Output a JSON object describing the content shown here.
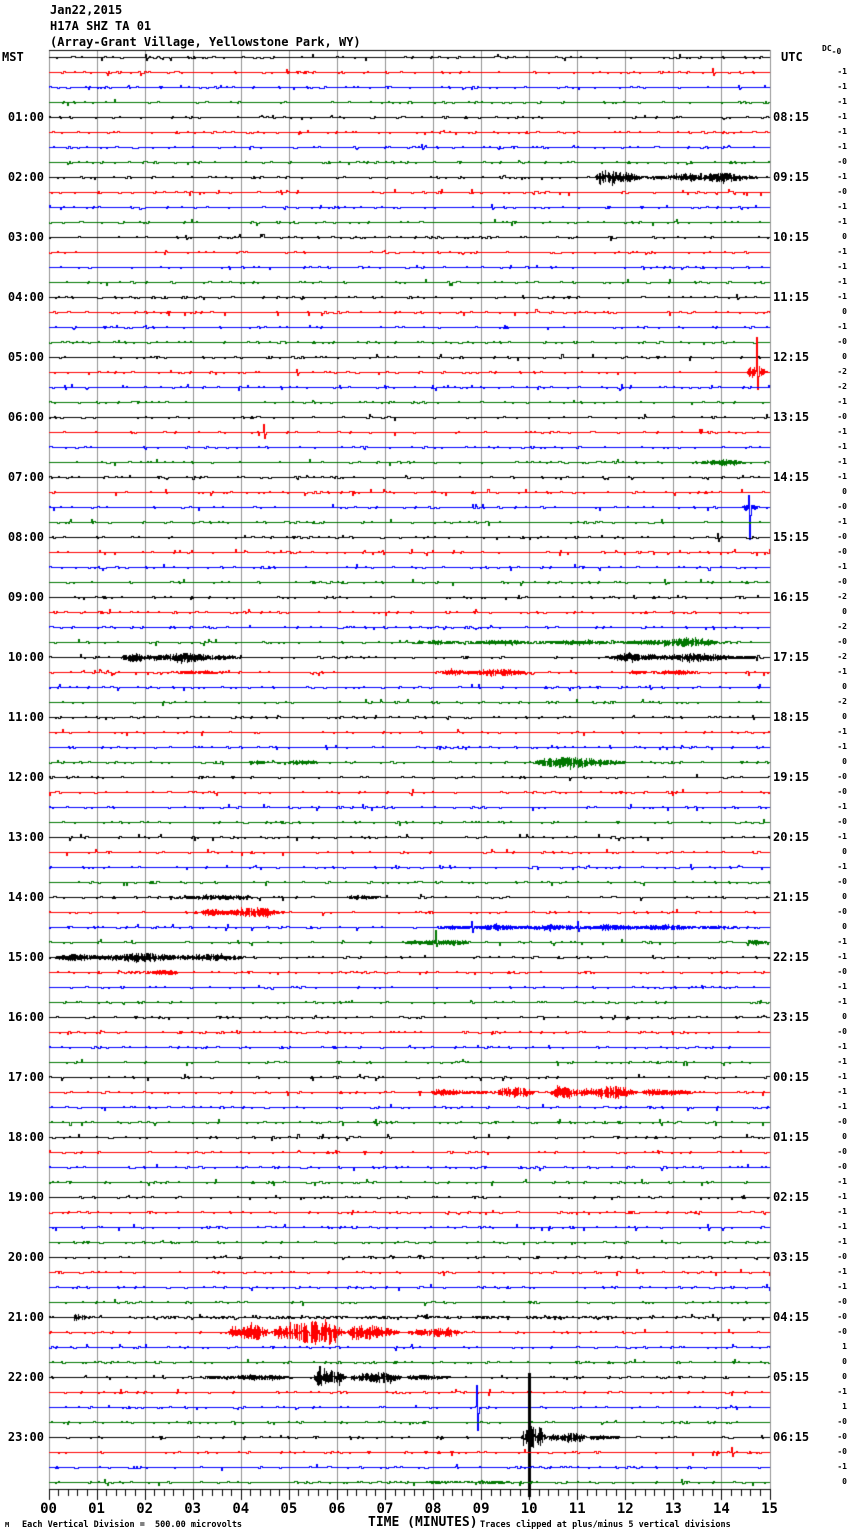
{
  "header": {
    "date": "Jan22,2015",
    "station": "H17A SHZ TA 01",
    "location": "(Array-Grant Village, Yellowstone Park, WY)"
  },
  "axes": {
    "left_title": "MST",
    "right_title": "UTC",
    "x_title": "TIME (MINUTES)",
    "dc_header": "DC",
    "x_ticks": [
      "00",
      "01",
      "02",
      "03",
      "04",
      "05",
      "06",
      "07",
      "08",
      "09",
      "10",
      "11",
      "12",
      "13",
      "14",
      "15"
    ]
  },
  "footer": {
    "logo_mark": "M",
    "scale_note": "Each Vertical Division =  500.00 microvolts",
    "clip_note": "Traces clipped at plus/minus 5 vertical divisions"
  },
  "chart_data": {
    "type": "line",
    "subtype": "helicorder-seismogram",
    "minutes_per_line": 15,
    "trace_colors": [
      "#000000",
      "#ff0000",
      "#0000ff",
      "#007700"
    ],
    "grid_color": "#909090",
    "rows": 96,
    "hours_left": [
      "01:00",
      "02:00",
      "03:00",
      "04:00",
      "05:00",
      "06:00",
      "07:00",
      "08:00",
      "09:00",
      "10:00",
      "11:00",
      "12:00",
      "13:00",
      "14:00",
      "15:00",
      "16:00",
      "17:00",
      "18:00",
      "19:00",
      "20:00",
      "21:00",
      "22:00",
      "23:00"
    ],
    "utc_right": [
      "08:15",
      "09:15",
      "10:15",
      "11:15",
      "12:15",
      "13:15",
      "14:15",
      "15:15",
      "16:15",
      "17:15",
      "18:15",
      "19:15",
      "20:15",
      "21:15",
      "22:15",
      "23:15",
      "00:15",
      "01:15",
      "02:15",
      "03:15",
      "04:15",
      "05:15",
      "06:15"
    ],
    "dc_values": [
      "-0",
      "-1",
      "-1",
      "-1",
      "-1",
      "-1",
      "-1",
      "-0",
      "-1",
      "-0",
      "-1",
      "-1",
      "0",
      "-1",
      "-1",
      "-1",
      "-1",
      "0",
      "-1",
      "-0",
      "0",
      "-2",
      "-2",
      "-1",
      "-0",
      "-1",
      "-1",
      "-1",
      "-1",
      "0",
      "-0",
      "-1",
      "-0",
      "-0",
      "-1",
      "-0",
      "-2",
      "0",
      "-2",
      "-0",
      "-2",
      "-1",
      "0",
      "-2",
      "0",
      "-1",
      "-1",
      "0",
      "-0",
      "-0",
      "-1",
      "-0",
      "-1",
      "0",
      "-1",
      "-0",
      "0",
      "-0",
      "0",
      "-1",
      "-1",
      "-0",
      "-1",
      "-1",
      "0",
      "-0",
      "-1",
      "-1",
      "-1",
      "-1",
      "-1",
      "-0",
      "0",
      "-0",
      "-0",
      "-1",
      "-1",
      "-1",
      "-1",
      "-1",
      "-0",
      "-1",
      "-1",
      "-0",
      "-0",
      "-0",
      "1",
      "0",
      "0",
      "-1",
      "1",
      "-0",
      "-0",
      "-0",
      "-1",
      "0"
    ],
    "events": {
      "0": [
        {
          "type": "spike",
          "t": 2.0,
          "up": 3,
          "down": 3
        },
        {
          "type": "burst",
          "t0": 1.8,
          "t1": 2.5,
          "amp": 1.2
        }
      ],
      "1": [
        {
          "type": "spike",
          "t": 13.8,
          "up": 4,
          "down": 3
        }
      ],
      "2": [
        {
          "type": "spike",
          "t": 14.35,
          "up": 2,
          "down": 2
        }
      ],
      "6": [
        {
          "type": "spike",
          "t": 7.75,
          "up": 3,
          "down": 2
        }
      ],
      "8": [
        {
          "type": "burst",
          "t0": 11.35,
          "t1": 12.45,
          "amp": 7.5
        },
        {
          "type": "burst",
          "t0": 12.45,
          "t1": 15,
          "amp": 4.5
        },
        {
          "type": "burst",
          "t0": 12.95,
          "t1": 13.55,
          "amp": 6.5
        }
      ],
      "10": [
        {
          "type": "spike",
          "t": 9.2,
          "up": 3,
          "down": 2
        }
      ],
      "12": [
        {
          "type": "spike",
          "t": 2.85,
          "up": 2,
          "down": 2
        }
      ],
      "16": [
        {
          "type": "spike",
          "t": 14.3,
          "up": 3,
          "down": 2
        }
      ],
      "21": [
        {
          "type": "spike",
          "t": 5.15,
          "up": 3,
          "down": 3
        },
        {
          "type": "spike",
          "t": 14.71,
          "up": 35,
          "down": 17
        },
        {
          "type": "burst",
          "t0": 14.52,
          "t1": 14.95,
          "amp": 10
        }
      ],
      "25": [
        {
          "type": "spike",
          "t": 4.47,
          "up": 8,
          "down": 6
        }
      ],
      "27": [
        {
          "type": "burst",
          "t0": 13.5,
          "t1": 14.55,
          "amp": 3
        }
      ],
      "30": [
        {
          "type": "spike",
          "t": 14.56,
          "up": 12,
          "down": 32
        },
        {
          "type": "burst",
          "t0": 14.42,
          "t1": 14.78,
          "amp": 6
        }
      ],
      "32": [
        {
          "type": "spike",
          "t": 13.9,
          "up": 4,
          "down": 4
        }
      ],
      "35": [
        {
          "type": "spike",
          "t": 12.8,
          "up": 3,
          "down": 2
        }
      ],
      "39": [
        {
          "type": "burst",
          "t0": 7.1,
          "t1": 15,
          "amp": 2.2
        },
        {
          "type": "burst",
          "t0": 12.1,
          "t1": 14.2,
          "amp": 4.2
        }
      ],
      "40": [
        {
          "type": "burst",
          "t0": 1.4,
          "t1": 4.1,
          "amp": 4.6
        },
        {
          "type": "burst",
          "t0": 11.5,
          "t1": 15,
          "amp": 4
        }
      ],
      "41": [
        {
          "type": "burst",
          "t0": 2.1,
          "t1": 4.0,
          "amp": 1.6
        },
        {
          "type": "burst",
          "t0": 8.1,
          "t1": 10.3,
          "amp": 3.5
        },
        {
          "type": "burst",
          "t0": 12.0,
          "t1": 13.7,
          "amp": 2.2
        }
      ],
      "42": [
        {
          "type": "spike",
          "t": 12.5,
          "up": 2,
          "down": 2
        }
      ],
      "47": [
        {
          "type": "burst",
          "t0": 4.1,
          "t1": 5.9,
          "amp": 2
        },
        {
          "type": "burst",
          "t0": 10.0,
          "t1": 12.15,
          "amp": 5.5
        }
      ],
      "54": [
        {
          "type": "spike",
          "t": 13.35,
          "up": 3,
          "down": 2
        }
      ],
      "56": [
        {
          "type": "burst",
          "t0": 2.3,
          "t1": 4.5,
          "amp": 2.2
        },
        {
          "type": "burst",
          "t0": 6.1,
          "t1": 7.1,
          "amp": 1.8
        }
      ],
      "57": [
        {
          "type": "burst",
          "t0": 3.1,
          "t1": 5.0,
          "amp": 4.6
        }
      ],
      "58": [
        {
          "type": "burst",
          "t0": 7.8,
          "t1": 15,
          "amp": 2.8
        },
        {
          "type": "spike",
          "t": 8.8,
          "up": 6,
          "down": 5
        },
        {
          "type": "spike",
          "t": 11.0,
          "up": 6,
          "down": 4
        }
      ],
      "59": [
        {
          "type": "spike",
          "t": 8.05,
          "up": 12,
          "down": 4
        },
        {
          "type": "burst",
          "t0": 7.2,
          "t1": 9.1,
          "amp": 2.4
        },
        {
          "type": "burst",
          "t0": 14.5,
          "t1": 15,
          "amp": 2.4
        }
      ],
      "60": [
        {
          "type": "burst",
          "t0": 0,
          "t1": 4.4,
          "amp": 4.4
        }
      ],
      "61": [
        {
          "type": "burst",
          "t0": 1.55,
          "t1": 2.9,
          "amp": 2.4
        }
      ],
      "69": [
        {
          "type": "burst",
          "t0": 7.9,
          "t1": 9.3,
          "amp": 3
        },
        {
          "type": "burst",
          "t0": 9.3,
          "t1": 10.2,
          "amp": 5.5
        },
        {
          "type": "burst",
          "t0": 10.4,
          "t1": 12.3,
          "amp": 7
        },
        {
          "type": "burst",
          "t0": 12.3,
          "t1": 13.6,
          "amp": 3.2
        }
      ],
      "84": [
        {
          "type": "burst",
          "t0": 0.5,
          "t1": 0.8,
          "amp": 4
        },
        {
          "type": "burst",
          "t0": 0.8,
          "t1": 15,
          "amp": 1.2
        }
      ],
      "85": [
        {
          "type": "burst",
          "t0": 3.7,
          "t1": 4.6,
          "amp": 8
        },
        {
          "type": "burst",
          "t0": 4.6,
          "t1": 6.2,
          "amp": 14
        },
        {
          "type": "burst",
          "t0": 6.2,
          "t1": 7.4,
          "amp": 8
        },
        {
          "type": "burst",
          "t0": 7.4,
          "t1": 8.6,
          "amp": 5
        }
      ],
      "88": [
        {
          "type": "burst",
          "t0": 3.1,
          "t1": 5.5,
          "amp": 2.6
        },
        {
          "type": "burst",
          "t0": 5.5,
          "t1": 6.2,
          "amp": 14
        },
        {
          "type": "burst",
          "t0": 6.2,
          "t1": 7.4,
          "amp": 5
        },
        {
          "type": "burst",
          "t0": 7.4,
          "t1": 8.5,
          "amp": 2.4
        }
      ],
      "90": [
        {
          "type": "spike",
          "t": 8.9,
          "up": 22,
          "down": 23
        }
      ],
      "92": [
        {
          "type": "vline",
          "t": 9.99,
          "up": 64,
          "down": 60
        },
        {
          "type": "burst",
          "t0": 9.82,
          "t1": 10.35,
          "amp": 24
        },
        {
          "type": "burst",
          "t0": 10.35,
          "t1": 11.2,
          "amp": 6.5
        },
        {
          "type": "burst",
          "t0": 11.2,
          "t1": 12.0,
          "amp": 2.4
        }
      ],
      "93": [
        {
          "type": "spike",
          "t": 14.2,
          "up": 5,
          "down": 4
        }
      ],
      "95": [
        {
          "type": "spike",
          "t": 13.15,
          "up": 3,
          "down": 2
        },
        {
          "type": "burst",
          "t0": 7.7,
          "t1": 10.1,
          "amp": 1.4
        }
      ]
    }
  }
}
